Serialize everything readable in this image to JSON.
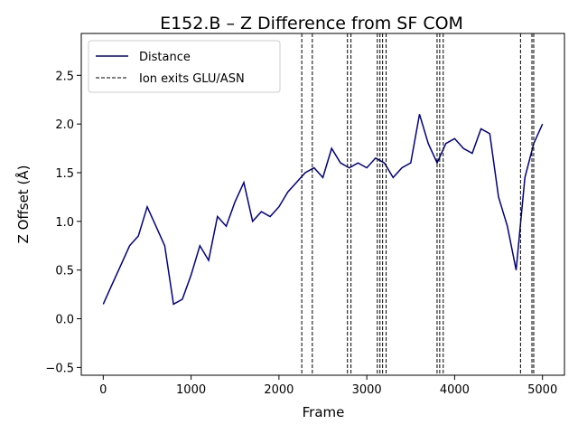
{
  "chart_data": {
    "type": "line",
    "title": "E152.B – Z Difference from SF COM",
    "xlabel": "Frame",
    "ylabel": "Z Offset (Å)",
    "xlim": [
      -250,
      5250
    ],
    "ylim": [
      -0.58,
      2.93
    ],
    "x_ticks": [
      0,
      1000,
      2000,
      3000,
      4000,
      5000
    ],
    "x_tick_labels": [
      "0",
      "1000",
      "2000",
      "3000",
      "4000",
      "5000"
    ],
    "y_ticks": [
      -0.5,
      0.0,
      0.5,
      1.0,
      1.5,
      2.0,
      2.5
    ],
    "y_tick_labels": [
      "−0.5",
      "0.0",
      "0.5",
      "1.0",
      "1.5",
      "2.0",
      "2.5"
    ],
    "grid": false,
    "legend_position": "top-left",
    "colors": {
      "distance": "#00008b",
      "exit_lines": "#000000"
    },
    "series": [
      {
        "name": "Distance",
        "style": "solid",
        "x": [
          0,
          100,
          200,
          300,
          400,
          500,
          600,
          700,
          800,
          900,
          1000,
          1100,
          1200,
          1300,
          1400,
          1500,
          1600,
          1700,
          1800,
          1900,
          2000,
          2100,
          2200,
          2300,
          2400,
          2500,
          2600,
          2700,
          2800,
          2900,
          3000,
          3100,
          3200,
          3300,
          3400,
          3500,
          3600,
          3700,
          3800,
          3900,
          4000,
          4100,
          4200,
          4300,
          4400,
          4500,
          4600,
          4700,
          4800,
          4900,
          5000
        ],
        "y": [
          0.15,
          0.35,
          0.55,
          0.75,
          0.85,
          1.15,
          0.95,
          0.75,
          0.15,
          0.2,
          0.45,
          0.75,
          0.6,
          1.05,
          0.95,
          1.2,
          1.4,
          1.0,
          1.1,
          1.05,
          1.15,
          1.3,
          1.4,
          1.5,
          1.55,
          1.45,
          1.75,
          1.6,
          1.55,
          1.6,
          1.55,
          1.65,
          1.6,
          1.45,
          1.55,
          1.6,
          2.1,
          1.8,
          1.6,
          1.8,
          1.85,
          1.75,
          1.7,
          1.95,
          1.9,
          1.25,
          0.95,
          0.5,
          1.45,
          1.8,
          2.0
        ]
      }
    ],
    "vlines": {
      "name": "Ion exits GLU/ASN",
      "style": "dashed",
      "x": [
        2260,
        2380,
        2780,
        2820,
        3120,
        3150,
        3180,
        3220,
        3800,
        3830,
        3870,
        4750,
        4880,
        4900
      ]
    }
  }
}
